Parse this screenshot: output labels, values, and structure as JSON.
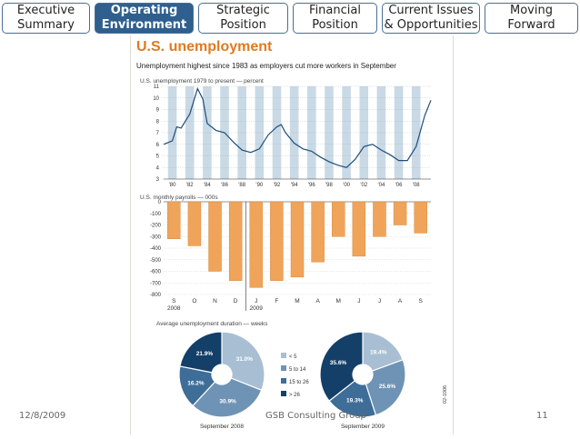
{
  "nav": {
    "tabs": [
      {
        "label": "Executive\nSummary",
        "active": false
      },
      {
        "label": "Operating\nEnvironment",
        "active": true
      },
      {
        "label": "Strategic\nPosition",
        "active": false
      },
      {
        "label": "Financial\nPosition",
        "active": false
      },
      {
        "label": "Current Issues\n& Opportunities",
        "active": false
      },
      {
        "label": "Moving\nForward",
        "active": false
      }
    ]
  },
  "figure": {
    "title": "U.S. unemployment",
    "subtitle": "Unemployment highest since 1983 as employers cut more workers in September",
    "side_code": "02-1006"
  },
  "colors": {
    "tab_active": "#2f5f8e",
    "line": "#1f4e79",
    "band": "#c9d9e6",
    "bar": "#f0a45a",
    "title": "#e07a1f"
  },
  "chart_data": [
    {
      "type": "line",
      "title": "U.S. unemployment 1979 to present — percent",
      "x_ticks": [
        "'80",
        "'82",
        "'84",
        "'86",
        "'88",
        "'90",
        "'92",
        "'94",
        "'96",
        "'98",
        "'00",
        "'02",
        "'04",
        "'06",
        "'08"
      ],
      "ylim": [
        3,
        11
      ],
      "y_ticks": [
        3,
        4,
        5,
        6,
        7,
        8,
        9,
        10,
        11
      ],
      "series": [
        {
          "x": [
            1979,
            1980,
            1980.5,
            1981,
            1982,
            1982.9,
            1983.5,
            1984,
            1985,
            1986,
            1987,
            1988,
            1989,
            1990,
            1991,
            1992,
            1992.5,
            1993,
            1994,
            1995,
            1996,
            1997,
            1998,
            1999,
            2000,
            2001,
            2002,
            2003,
            2004,
            2005,
            2006,
            2007,
            2008,
            2009,
            2009.7
          ],
          "values": [
            6.0,
            6.3,
            7.5,
            7.4,
            8.6,
            10.8,
            9.9,
            7.8,
            7.2,
            7.0,
            6.2,
            5.5,
            5.3,
            5.6,
            6.8,
            7.5,
            7.7,
            7.0,
            6.1,
            5.6,
            5.4,
            4.9,
            4.5,
            4.2,
            4.0,
            4.7,
            5.8,
            6.0,
            5.5,
            5.1,
            4.6,
            4.6,
            5.8,
            8.5,
            9.8
          ]
        }
      ]
    },
    {
      "type": "bar",
      "title": "U.S. monthly payrolls — 000s",
      "categories": [
        "S",
        "O",
        "N",
        "D",
        "J",
        "F",
        "M",
        "A",
        "M",
        "J",
        "J",
        "A",
        "S"
      ],
      "year_labels": [
        "2008",
        "2009"
      ],
      "values": [
        -320,
        -380,
        -600,
        -680,
        -740,
        -680,
        -650,
        -520,
        -300,
        -470,
        -300,
        -200,
        -270
      ],
      "ylim": [
        -800,
        0
      ],
      "y_ticks": [
        0,
        -100,
        -200,
        -300,
        -400,
        -500,
        -600,
        -700,
        -800
      ]
    },
    {
      "type": "pie",
      "title": "Average unemployment duration — weeks",
      "legend": [
        "< 5",
        "5 to 14",
        "15 to 26",
        "> 26"
      ],
      "pies": [
        {
          "label": "September 2008",
          "values": [
            31.0,
            30.9,
            16.2,
            21.9
          ],
          "value_labels": [
            "31.0%",
            "30.9%",
            "16.2%",
            "21.9%"
          ]
        },
        {
          "label": "September 2009",
          "values": [
            19.4,
            25.6,
            19.3,
            35.6
          ],
          "value_labels": [
            "19.4%",
            "25.6%",
            "19.3%",
            "35.6%"
          ]
        }
      ],
      "colors": [
        "#a8bfd3",
        "#6f93b5",
        "#3e6d98",
        "#143f69"
      ]
    }
  ],
  "footer": {
    "date": "12/8/2009",
    "center": "GSB Consulting Group",
    "page": "11"
  }
}
